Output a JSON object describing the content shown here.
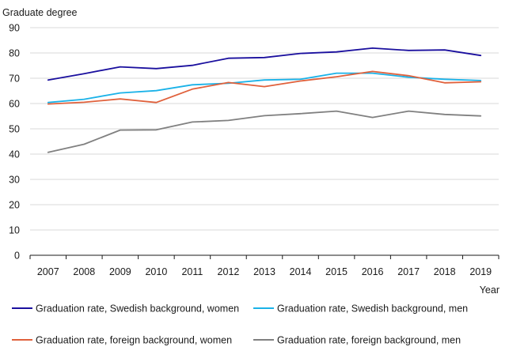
{
  "chart_data": {
    "type": "line",
    "ylabel": "Graduate degree",
    "xlabel": "Year",
    "ylim": [
      0,
      90
    ],
    "yticks": [
      0,
      10,
      20,
      30,
      40,
      50,
      60,
      70,
      80,
      90
    ],
    "categories": [
      "2007",
      "2008",
      "2009",
      "2010",
      "2011",
      "2012",
      "2013",
      "2014",
      "2015",
      "2016",
      "2017",
      "2018",
      "2019"
    ],
    "grid": true,
    "legend_position": "bottom",
    "series": [
      {
        "name": "Graduation rate, Swedish background, women",
        "color": "#1a0f9e",
        "values": [
          69.3,
          71.8,
          74.5,
          73.8,
          75.1,
          77.9,
          78.2,
          79.8,
          80.4,
          81.9,
          81.0,
          81.2,
          79.0
        ]
      },
      {
        "name": "Graduation rate, Swedish background, men",
        "color": "#1ab2e8",
        "values": [
          60.4,
          61.7,
          64.2,
          65.1,
          67.4,
          68.0,
          69.3,
          69.6,
          72.0,
          72.0,
          70.4,
          69.6,
          69.1
        ]
      },
      {
        "name": "Graduation rate, foreign background, women",
        "color": "#e0613c",
        "values": [
          59.8,
          60.5,
          61.8,
          60.4,
          65.7,
          68.3,
          66.7,
          68.9,
          70.6,
          72.7,
          71.0,
          68.2,
          68.6
        ]
      },
      {
        "name": "Graduation rate, foreign background, men",
        "color": "#808080",
        "values": [
          40.7,
          43.9,
          49.5,
          49.6,
          52.7,
          53.3,
          55.2,
          56.0,
          57.0,
          54.5,
          57.0,
          55.7,
          55.1
        ]
      }
    ]
  }
}
